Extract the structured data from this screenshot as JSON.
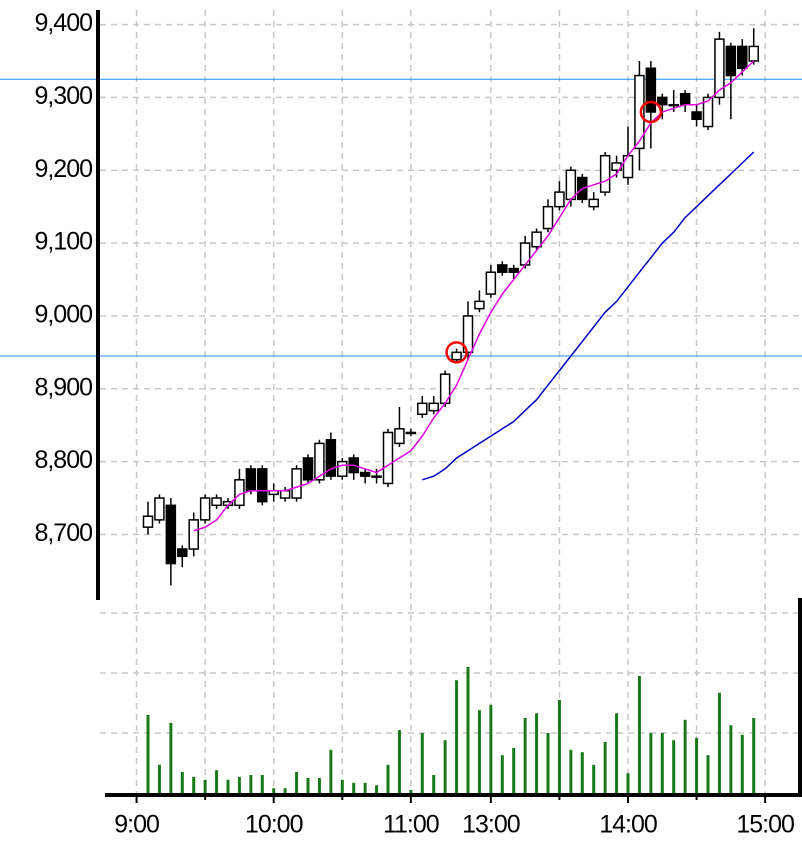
{
  "chart_data": {
    "type": "candlestick",
    "x": [
      1,
      2,
      3,
      4,
      5,
      6,
      7,
      8,
      9,
      10,
      11,
      12,
      13,
      14,
      15,
      16,
      17,
      18,
      19,
      20,
      21,
      22,
      23,
      24,
      25,
      26,
      27,
      28,
      29,
      30,
      31,
      32,
      33,
      34,
      35,
      36,
      37,
      38,
      39,
      40,
      41,
      42,
      43,
      44,
      45,
      46,
      47,
      48,
      49,
      50,
      51,
      52,
      53,
      54
    ],
    "open": [
      8710,
      8720,
      8740,
      8680,
      8680,
      8720,
      8740,
      8740,
      8740,
      8790,
      8790,
      8755,
      8750,
      8750,
      8805,
      8775,
      8830,
      8780,
      8805,
      8785,
      8780,
      8770,
      8825,
      8840,
      8865,
      8870,
      8880,
      8940,
      8950,
      9010,
      9030,
      9070,
      9065,
      9070,
      9095,
      9120,
      9150,
      9160,
      9190,
      9150,
      9170,
      9200,
      9190,
      9230,
      9340,
      9300,
      9290,
      9305,
      9280,
      9260,
      9300,
      9370,
      9370,
      9350
    ],
    "high": [
      8745,
      8755,
      8750,
      8685,
      8730,
      8755,
      8755,
      8750,
      8790,
      8795,
      8795,
      8770,
      8765,
      8795,
      8810,
      8830,
      8840,
      8805,
      8810,
      8790,
      8790,
      8845,
      8875,
      8845,
      8890,
      8890,
      8925,
      8955,
      9020,
      9035,
      9070,
      9075,
      9070,
      9110,
      9120,
      9160,
      9185,
      9205,
      9195,
      9170,
      9225,
      9220,
      9260,
      9350,
      9350,
      9305,
      9310,
      9310,
      9290,
      9305,
      9390,
      9375,
      9380,
      9395
    ],
    "low": [
      8700,
      8715,
      8630,
      8655,
      8670,
      8715,
      8735,
      8735,
      8735,
      8755,
      8740,
      8745,
      8745,
      8745,
      8770,
      8770,
      8775,
      8775,
      8775,
      8770,
      8770,
      8765,
      8820,
      8835,
      8860,
      8865,
      8875,
      8935,
      8940,
      9005,
      9025,
      9055,
      9050,
      9065,
      9090,
      9115,
      9145,
      9150,
      9155,
      9145,
      9165,
      9190,
      9180,
      9200,
      9230,
      9270,
      9280,
      9280,
      9260,
      9255,
      9290,
      9270,
      9330,
      9345
    ],
    "close": [
      8725,
      8750,
      8660,
      8670,
      8720,
      8750,
      8750,
      8745,
      8775,
      8760,
      8745,
      8760,
      8760,
      8790,
      8775,
      8825,
      8780,
      8800,
      8785,
      8780,
      8780,
      8840,
      8845,
      8840,
      8880,
      8880,
      8920,
      8950,
      9000,
      9020,
      9060,
      9060,
      9060,
      9100,
      9115,
      9150,
      9170,
      9200,
      9160,
      9160,
      9220,
      9210,
      9220,
      9330,
      9280,
      9290,
      9290,
      9290,
      9270,
      9300,
      9380,
      9330,
      9340,
      9370
    ],
    "lines": [
      {
        "color": "#e000e0",
        "values": [
          null,
          null,
          null,
          null,
          8705,
          8710,
          8720,
          8740,
          8755,
          8760,
          8760,
          8760,
          8760,
          8765,
          8770,
          8780,
          8790,
          8795,
          8795,
          8790,
          8785,
          8795,
          8805,
          8815,
          8835,
          8860,
          8880,
          8905,
          8940,
          8975,
          9005,
          9030,
          9050,
          9070,
          9090,
          9110,
          9135,
          9160,
          9175,
          9180,
          9185,
          9195,
          9220,
          9240,
          9265,
          9280,
          9285,
          9290,
          9290,
          9295,
          9310,
          9320,
          9335,
          9350
        ]
      },
      {
        "color": "#0000c0",
        "values": [
          null,
          null,
          null,
          null,
          null,
          null,
          null,
          null,
          null,
          null,
          null,
          null,
          null,
          null,
          null,
          null,
          null,
          null,
          null,
          null,
          null,
          null,
          null,
          null,
          8775,
          8780,
          8790,
          8805,
          8815,
          8825,
          8835,
          8845,
          8855,
          8870,
          8885,
          8905,
          8925,
          8945,
          8965,
          8985,
          9005,
          9020,
          9040,
          9060,
          9080,
          9100,
          9115,
          9135,
          9150,
          9165,
          9180,
          9195,
          9210,
          9225
        ]
      }
    ],
    "hlines": [
      9325,
      8945
    ],
    "hline_color": "#1e90ff",
    "highlight": [
      28,
      45
    ],
    "highlight_color": "#ff0000",
    "xlim": [
      -3.2,
      56.3
    ],
    "xticks": [
      {
        "value": 0,
        "label": "9:00"
      },
      {
        "value": 12,
        "label": "10:00"
      },
      {
        "value": 24,
        "label": "11:00"
      },
      {
        "value": 31,
        "label": "13:00"
      },
      {
        "value": 43,
        "label": "14:00"
      },
      {
        "value": 55,
        "label": "15:00"
      }
    ],
    "xminor": [
      6,
      18,
      37,
      49
    ],
    "ylim": [
      8610,
      9420
    ],
    "yticks": [
      {
        "value": 9400,
        "label": "9,400"
      },
      {
        "value": 9300,
        "label": "9,300"
      },
      {
        "value": 9200,
        "label": "9,200"
      },
      {
        "value": 9100,
        "label": "9,100"
      },
      {
        "value": 9000,
        "label": "9,000"
      },
      {
        "value": 8900,
        "label": "8,900"
      },
      {
        "value": 8800,
        "label": "8,800"
      },
      {
        "value": 8700,
        "label": "8,700"
      }
    ],
    "grid": true,
    "volume": {
      "color": "#1a7a1a",
      "ylim": [
        0,
        3
      ],
      "yticks": [
        1,
        2,
        3
      ],
      "values": [
        1.3,
        0.47,
        1.17,
        0.35,
        0.27,
        0.22,
        0.38,
        0.22,
        0.27,
        0.3,
        0.3,
        0.08,
        0.08,
        0.35,
        0.25,
        0.25,
        0.72,
        0.22,
        0.17,
        0.17,
        0.13,
        0.47,
        1.05,
        0.05,
        1.0,
        0.3,
        0.88,
        1.88,
        2.1,
        1.38,
        1.47,
        0.63,
        0.75,
        1.25,
        1.33,
        1.0,
        1.55,
        0.72,
        0.68,
        0.47,
        0.85,
        1.33,
        0.33,
        1.95,
        1.0,
        1.0,
        0.88,
        1.22,
        0.92,
        0.63,
        1.67,
        1.13,
        0.97,
        1.25
      ]
    }
  }
}
